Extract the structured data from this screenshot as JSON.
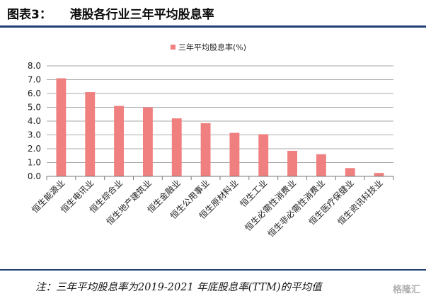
{
  "header": {
    "figure_label": "图表3：",
    "title": "港股各行业三年平均股息率"
  },
  "note": "注：三年平均股息率为2019-2021 年底股息率(TTM)的平均值",
  "watermark": "格隆汇",
  "chart_data": {
    "type": "bar",
    "title": "",
    "xlabel": "",
    "ylabel": "",
    "ylim": [
      0,
      8
    ],
    "yticks": [
      "0.0",
      "1.0",
      "2.0",
      "3.0",
      "4.0",
      "5.0",
      "6.0",
      "7.0",
      "8.0"
    ],
    "grid": true,
    "legend": "top-center",
    "bar_color": "#f08080",
    "categories": [
      "恒生能源业",
      "恒生电讯业",
      "恒生综合业",
      "恒生地产建筑业",
      "恒生金融业",
      "恒生公用事业",
      "恒生原材料业",
      "恒生工业",
      "恒生必需性消费业",
      "恒生非必需性消费业",
      "恒生医疗保健业",
      "恒生资讯科技业"
    ],
    "series": [
      {
        "name": "三年平均股息率(%)",
        "values": [
          7.1,
          6.1,
          5.1,
          5.0,
          4.2,
          3.85,
          3.15,
          3.05,
          1.85,
          1.6,
          0.6,
          0.25
        ]
      }
    ]
  }
}
